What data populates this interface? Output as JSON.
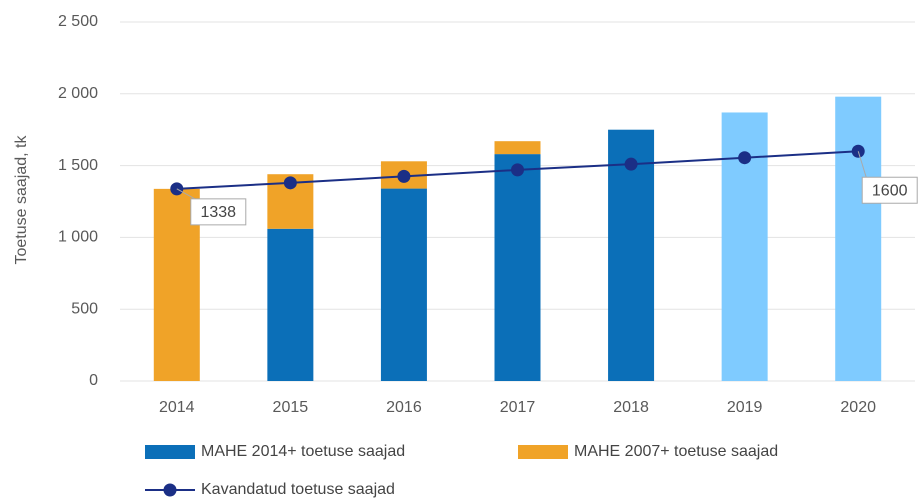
{
  "chart_data": {
    "type": "bar",
    "stacked": true,
    "ylabel": "Toetuse saajad, tk",
    "categories": [
      "2014",
      "2015",
      "2016",
      "2017",
      "2018",
      "2019",
      "2020"
    ],
    "series": [
      {
        "name": "MAHE 2014+ toetuse saajad",
        "color": "#0b6fb8",
        "colors": [
          "#0b6fb8",
          "#0b6fb8",
          "#0b6fb8",
          "#0b6fb8",
          "#0b6fb8",
          "#7fcbff",
          "#7fcbff"
        ],
        "values": [
          null,
          1060,
          1340,
          1580,
          1750,
          1870,
          1980
        ]
      },
      {
        "name": "MAHE 2007+ toetuse saajad",
        "color": "#f0a328",
        "values": [
          1338,
          380,
          190,
          90,
          null,
          null,
          null
        ]
      },
      {
        "name": "Kavandatud toetuse saajad",
        "type": "line",
        "color": "#1b2f86",
        "values": [
          1338,
          1380,
          1425,
          1470,
          1510,
          1555,
          1600
        ],
        "value_labels": [
          "1338",
          null,
          null,
          null,
          null,
          null,
          "1600"
        ]
      }
    ],
    "ylim": [
      0,
      2500
    ],
    "yticks": [
      0,
      500,
      {
        "value": 1000,
        "label": "1 000"
      },
      {
        "value": 1500,
        "label": "1 500"
      },
      {
        "value": 2000,
        "label": "2 000"
      },
      {
        "value": 2500,
        "label": "2 500"
      }
    ],
    "grid": true,
    "legend": "bottom"
  }
}
